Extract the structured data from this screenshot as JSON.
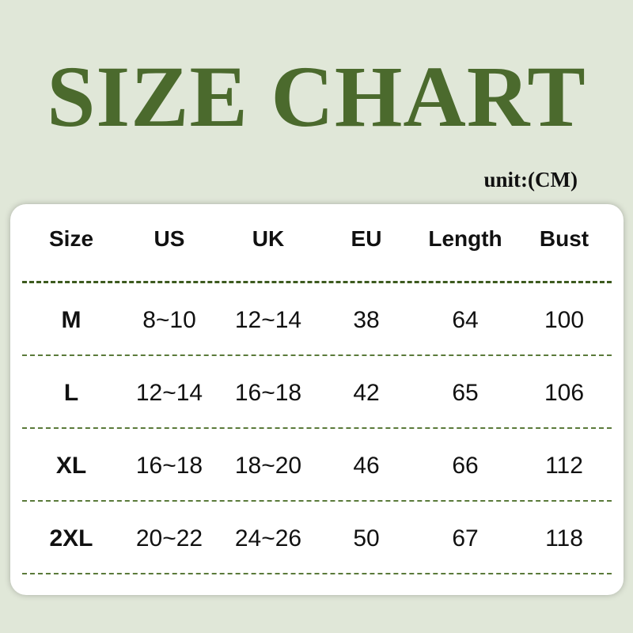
{
  "title": "SIZE CHART",
  "unit": "unit:(CM)",
  "colors": {
    "title": "#4b6a2d",
    "background": "#e0e7d8",
    "divider": "#3d5a1e"
  },
  "table": {
    "headers": [
      "Size",
      "US",
      "UK",
      "EU",
      "Length",
      "Bust"
    ],
    "rows": [
      [
        "M",
        "8~10",
        "12~14",
        "38",
        "64",
        "100"
      ],
      [
        "L",
        "12~14",
        "16~18",
        "42",
        "65",
        "106"
      ],
      [
        "XL",
        "16~18",
        "18~20",
        "46",
        "66",
        "112"
      ],
      [
        "2XL",
        "20~22",
        "24~26",
        "50",
        "67",
        "118"
      ]
    ]
  }
}
